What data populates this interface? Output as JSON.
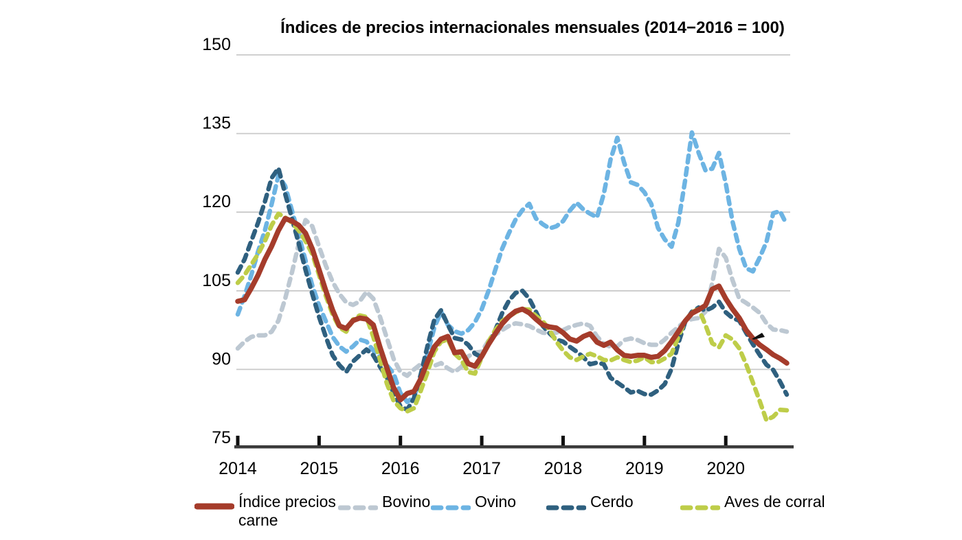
{
  "title": "Índices de precios internacionales mensuales (2014−2016 = 100)",
  "chart_data": {
    "type": "line",
    "title": "Índices de precios internacionales mensuales (2014−2016 = 100)",
    "xlabel": "",
    "ylabel": "",
    "ylim": [
      75,
      150
    ],
    "yticks": [
      150,
      135,
      120,
      105,
      90,
      75
    ],
    "xticks": [
      "2014",
      "2015",
      "2016",
      "2017",
      "2018",
      "2019",
      "2020"
    ],
    "grid": "horizontal",
    "legend_position": "bottom",
    "x_monthly": [
      "2014-01",
      "2014-02",
      "2014-03",
      "2014-04",
      "2014-05",
      "2014-06",
      "2014-07",
      "2014-08",
      "2014-09",
      "2014-10",
      "2014-11",
      "2014-12",
      "2015-01",
      "2015-02",
      "2015-03",
      "2015-04",
      "2015-05",
      "2015-06",
      "2015-07",
      "2015-08",
      "2015-09",
      "2015-10",
      "2015-11",
      "2015-12",
      "2016-01",
      "2016-02",
      "2016-03",
      "2016-04",
      "2016-05",
      "2016-06",
      "2016-07",
      "2016-08",
      "2016-09",
      "2016-10",
      "2016-11",
      "2016-12",
      "2017-01",
      "2017-02",
      "2017-03",
      "2017-04",
      "2017-05",
      "2017-06",
      "2017-07",
      "2017-08",
      "2017-09",
      "2017-10",
      "2017-11",
      "2017-12",
      "2018-01",
      "2018-02",
      "2018-03",
      "2018-04",
      "2018-05",
      "2018-06",
      "2018-07",
      "2018-08",
      "2018-09",
      "2018-10",
      "2018-11",
      "2018-12",
      "2019-01",
      "2019-02",
      "2019-03",
      "2019-04",
      "2019-05",
      "2019-06",
      "2019-07",
      "2019-08",
      "2019-09",
      "2019-10",
      "2019-11",
      "2019-12",
      "2020-01",
      "2020-02",
      "2020-03",
      "2020-04",
      "2020-05",
      "2020-06",
      "2020-07",
      "2020-08",
      "2020-09",
      "2020-10"
    ],
    "series": [
      {
        "name": "Índice precios carne",
        "color": "#a53c2b",
        "style": "solid",
        "values": [
          103.0,
          103.3,
          105.5,
          108.0,
          111.0,
          113.5,
          116.5,
          118.8,
          118.3,
          117.5,
          116.0,
          113.0,
          109.0,
          105.0,
          101.3,
          98.3,
          97.8,
          99.3,
          99.8,
          99.6,
          98.5,
          94.2,
          90.3,
          86.5,
          84.2,
          85.4,
          85.8,
          88.2,
          91.5,
          94.3,
          95.8,
          96.3,
          93.2,
          93.4,
          91.1,
          90.6,
          92.5,
          94.8,
          96.8,
          98.7,
          100.1,
          101.1,
          101.5,
          100.8,
          99.6,
          98.5,
          98.1,
          97.9,
          97.0,
          95.8,
          95.4,
          96.3,
          96.8,
          95.2,
          94.6,
          95.2,
          93.7,
          92.7,
          92.5,
          92.7,
          92.7,
          92.3,
          92.5,
          93.6,
          95.3,
          97.2,
          99.2,
          100.7,
          101.4,
          102.2,
          105.3,
          105.9,
          103.5,
          101.5,
          99.8,
          97.5,
          95.9,
          94.7,
          93.8,
          92.8,
          92.1,
          91.2
        ]
      },
      {
        "name": "Bovino",
        "color": "#bdc8d2",
        "style": "dashed",
        "values": [
          94.0,
          95.3,
          96.2,
          96.5,
          96.5,
          97.2,
          99.3,
          103.5,
          108.5,
          114.0,
          118.5,
          117.3,
          113.4,
          109.8,
          106.7,
          104.4,
          102.8,
          102.3,
          103.0,
          104.8,
          103.5,
          100.0,
          96.0,
          92.0,
          89.5,
          88.8,
          90.0,
          91.0,
          91.5,
          90.7,
          91.2,
          90.2,
          89.5,
          90.5,
          92.5,
          93.2,
          93.4,
          95.5,
          96.6,
          97.5,
          98.3,
          98.8,
          98.6,
          98.3,
          97.6,
          97.0,
          96.9,
          97.0,
          97.5,
          98.1,
          98.5,
          98.8,
          98.3,
          96.3,
          94.9,
          94.3,
          94.4,
          95.6,
          95.9,
          95.6,
          95.0,
          94.7,
          94.7,
          95.7,
          97.0,
          98.1,
          99.2,
          99.6,
          99.8,
          101.0,
          106.5,
          113.0,
          111.3,
          107.0,
          103.5,
          102.7,
          101.8,
          100.8,
          98.8,
          97.6,
          97.5,
          97.2
        ]
      },
      {
        "name": "Ovino",
        "color": "#6db4e3",
        "style": "dashed",
        "values": [
          100.5,
          104.0,
          108.0,
          112.5,
          116.5,
          121.5,
          127.0,
          125.0,
          120.3,
          115.6,
          110.8,
          106.0,
          102.2,
          99.2,
          96.2,
          94.4,
          93.4,
          94.4,
          95.7,
          95.3,
          93.6,
          92.3,
          90.8,
          89.2,
          85.5,
          83.8,
          84.8,
          88.5,
          93.0,
          98.0,
          101.0,
          98.5,
          97.3,
          96.8,
          97.5,
          99.0,
          101.5,
          105.0,
          109.0,
          113.0,
          116.0,
          118.6,
          120.4,
          121.6,
          118.8,
          117.7,
          116.9,
          117.3,
          118.3,
          120.3,
          121.8,
          120.5,
          119.7,
          119.0,
          123.5,
          130.0,
          134.2,
          129.5,
          125.7,
          125.2,
          123.8,
          121.6,
          117.0,
          114.8,
          113.4,
          118.0,
          126.0,
          135.2,
          131.3,
          128.0,
          128.3,
          131.3,
          125.5,
          118.2,
          113.0,
          109.3,
          108.7,
          111.3,
          114.3,
          119.8,
          120.2,
          117.6
        ]
      },
      {
        "name": "Cerdo",
        "color": "#2f607f",
        "style": "dashed",
        "values": [
          108.5,
          111.0,
          114.5,
          118.0,
          122.0,
          126.5,
          128.4,
          123.5,
          118.8,
          114.0,
          109.0,
          104.4,
          100.0,
          96.2,
          92.7,
          90.8,
          89.5,
          91.5,
          92.7,
          93.8,
          92.7,
          90.5,
          88.5,
          85.5,
          83.0,
          82.3,
          84.5,
          89.0,
          94.5,
          99.5,
          101.3,
          98.5,
          96.0,
          95.7,
          94.7,
          93.0,
          92.3,
          95.0,
          97.5,
          100.7,
          103.1,
          104.6,
          105.0,
          103.5,
          101.0,
          98.3,
          96.9,
          95.7,
          95.3,
          94.3,
          93.4,
          92.3,
          91.0,
          91.3,
          91.0,
          88.4,
          87.5,
          86.6,
          85.6,
          85.9,
          85.3,
          85.2,
          86.0,
          87.2,
          90.1,
          95.0,
          99.0,
          101.0,
          101.8,
          101.2,
          101.8,
          102.9,
          100.9,
          99.8,
          99.3,
          97.0,
          94.8,
          92.8,
          90.9,
          89.9,
          87.7,
          85.2
        ]
      },
      {
        "name": "Aves de corral",
        "color": "#becd49",
        "style": "dashed",
        "values": [
          106.5,
          108.0,
          110.0,
          112.0,
          114.5,
          117.5,
          119.7,
          119.0,
          118.0,
          116.5,
          114.5,
          112.0,
          108.0,
          104.0,
          100.5,
          98.0,
          97.2,
          99.5,
          100.3,
          100.0,
          96.2,
          91.8,
          87.3,
          84.0,
          82.6,
          82.0,
          82.6,
          85.9,
          89.5,
          93.4,
          95.3,
          95.7,
          93.0,
          91.8,
          89.5,
          89.2,
          92.3,
          95.3,
          97.5,
          99.2,
          100.1,
          100.9,
          101.5,
          101.4,
          100.2,
          99.2,
          97.5,
          95.3,
          93.6,
          92.3,
          91.8,
          92.5,
          93.0,
          92.5,
          91.8,
          91.7,
          92.3,
          91.8,
          91.4,
          91.7,
          92.3,
          91.4,
          91.4,
          92.1,
          93.0,
          96.2,
          99.2,
          100.9,
          101.5,
          98.5,
          95.0,
          94.2,
          96.5,
          95.7,
          94.0,
          91.0,
          87.5,
          84.0,
          80.3,
          81.0,
          82.3,
          82.2
        ]
      }
    ]
  },
  "colors": {
    "gridline": "#c9c9c9",
    "axis": "#3b3b3b",
    "tick": "#0f0f0f",
    "text": "#000000"
  }
}
